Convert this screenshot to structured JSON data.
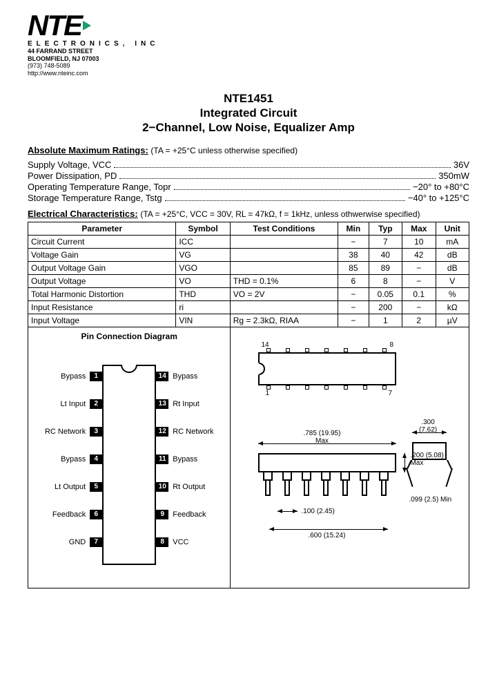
{
  "company": {
    "logo": "NTE",
    "name": "ELECTRONICS, INC",
    "street": "44 FARRAND STREET",
    "city": "BLOOMFIELD, NJ 07003",
    "phone": "(973) 748-5089",
    "url": "http://www.nteinc.com"
  },
  "title": {
    "part": "NTE1451",
    "l2": "Integrated Circuit",
    "l3": "2−Channel, Low Noise, Equalizer Amp"
  },
  "ratings": {
    "header": "Absolute Maximum Ratings:",
    "note": "(TA = +25°C unless otherwise specified)",
    "items": [
      {
        "label": "Supply Voltage, VCC",
        "value": "36V"
      },
      {
        "label": "Power Dissipation, PD",
        "value": "350mW"
      },
      {
        "label": "Operating Temperature Range, Topr",
        "value": "−20° to +80°C"
      },
      {
        "label": "Storage Temperature Range, Tstg",
        "value": "−40° to +125°C"
      }
    ]
  },
  "ec": {
    "header": "Electrical Characteristics:",
    "note": "(TA = +25°C, VCC = 30V, RL = 47kΩ, f = 1kHz, unless othwerwise specified)",
    "columns": [
      "Parameter",
      "Symbol",
      "Test Conditions",
      "Min",
      "Typ",
      "Max",
      "Unit"
    ],
    "rows": [
      [
        "Circuit Current",
        "ICC",
        "",
        "−",
        "7",
        "10",
        "mA"
      ],
      [
        "Voltage Gain",
        "VG",
        "",
        "38",
        "40",
        "42",
        "dB"
      ],
      [
        "Output Voltage Gain",
        "VGO",
        "",
        "85",
        "89",
        "−",
        "dB"
      ],
      [
        "Output Voltage",
        "VO",
        "THD = 0.1%",
        "6",
        "8",
        "−",
        "V"
      ],
      [
        "Total Harmonic Distortion",
        "THD",
        "VO = 2V",
        "−",
        "0.05",
        "0.1",
        "%"
      ],
      [
        "Input Resistance",
        "ri",
        "",
        "−",
        "200",
        "−",
        "kΩ"
      ],
      [
        "Input Voltage",
        "VIN",
        "Rg = 2.3kΩ, RIAA",
        "−",
        "1",
        "2",
        "µV"
      ]
    ]
  },
  "pins": {
    "title": "Pin Connection Diagram",
    "left": [
      {
        "n": "1",
        "l": "Bypass"
      },
      {
        "n": "2",
        "l": "Lt Input"
      },
      {
        "n": "3",
        "l": "RC Network"
      },
      {
        "n": "4",
        "l": "Bypass"
      },
      {
        "n": "5",
        "l": "Lt Output"
      },
      {
        "n": "6",
        "l": "Feedback"
      },
      {
        "n": "7",
        "l": "GND"
      }
    ],
    "right": [
      {
        "n": "14",
        "l": "Bypass"
      },
      {
        "n": "13",
        "l": "Rt Input"
      },
      {
        "n": "12",
        "l": "RC Network"
      },
      {
        "n": "11",
        "l": "Bypass"
      },
      {
        "n": "10",
        "l": "Rt Output"
      },
      {
        "n": "9",
        "l": "Feedback"
      },
      {
        "n": "8",
        "l": "VCC"
      }
    ]
  },
  "pkg": {
    "topLeft": "14",
    "topRight": "8",
    "botLeft": "1",
    "botRight": "7",
    "dim1": ".785 (19.95)",
    "dim1b": "Max",
    "dim2": ".200 (5.08)",
    "dim2b": "Max",
    "dim3": ".099 (2.5) Min",
    "dim4": ".100 (2.45)",
    "dim5": ".600 (15.24)",
    "dim6": ".300",
    "dim6b": "(7.62)"
  },
  "style": {
    "accent": "#1a9e6b",
    "border": "#000000",
    "bg": "#ffffff"
  }
}
